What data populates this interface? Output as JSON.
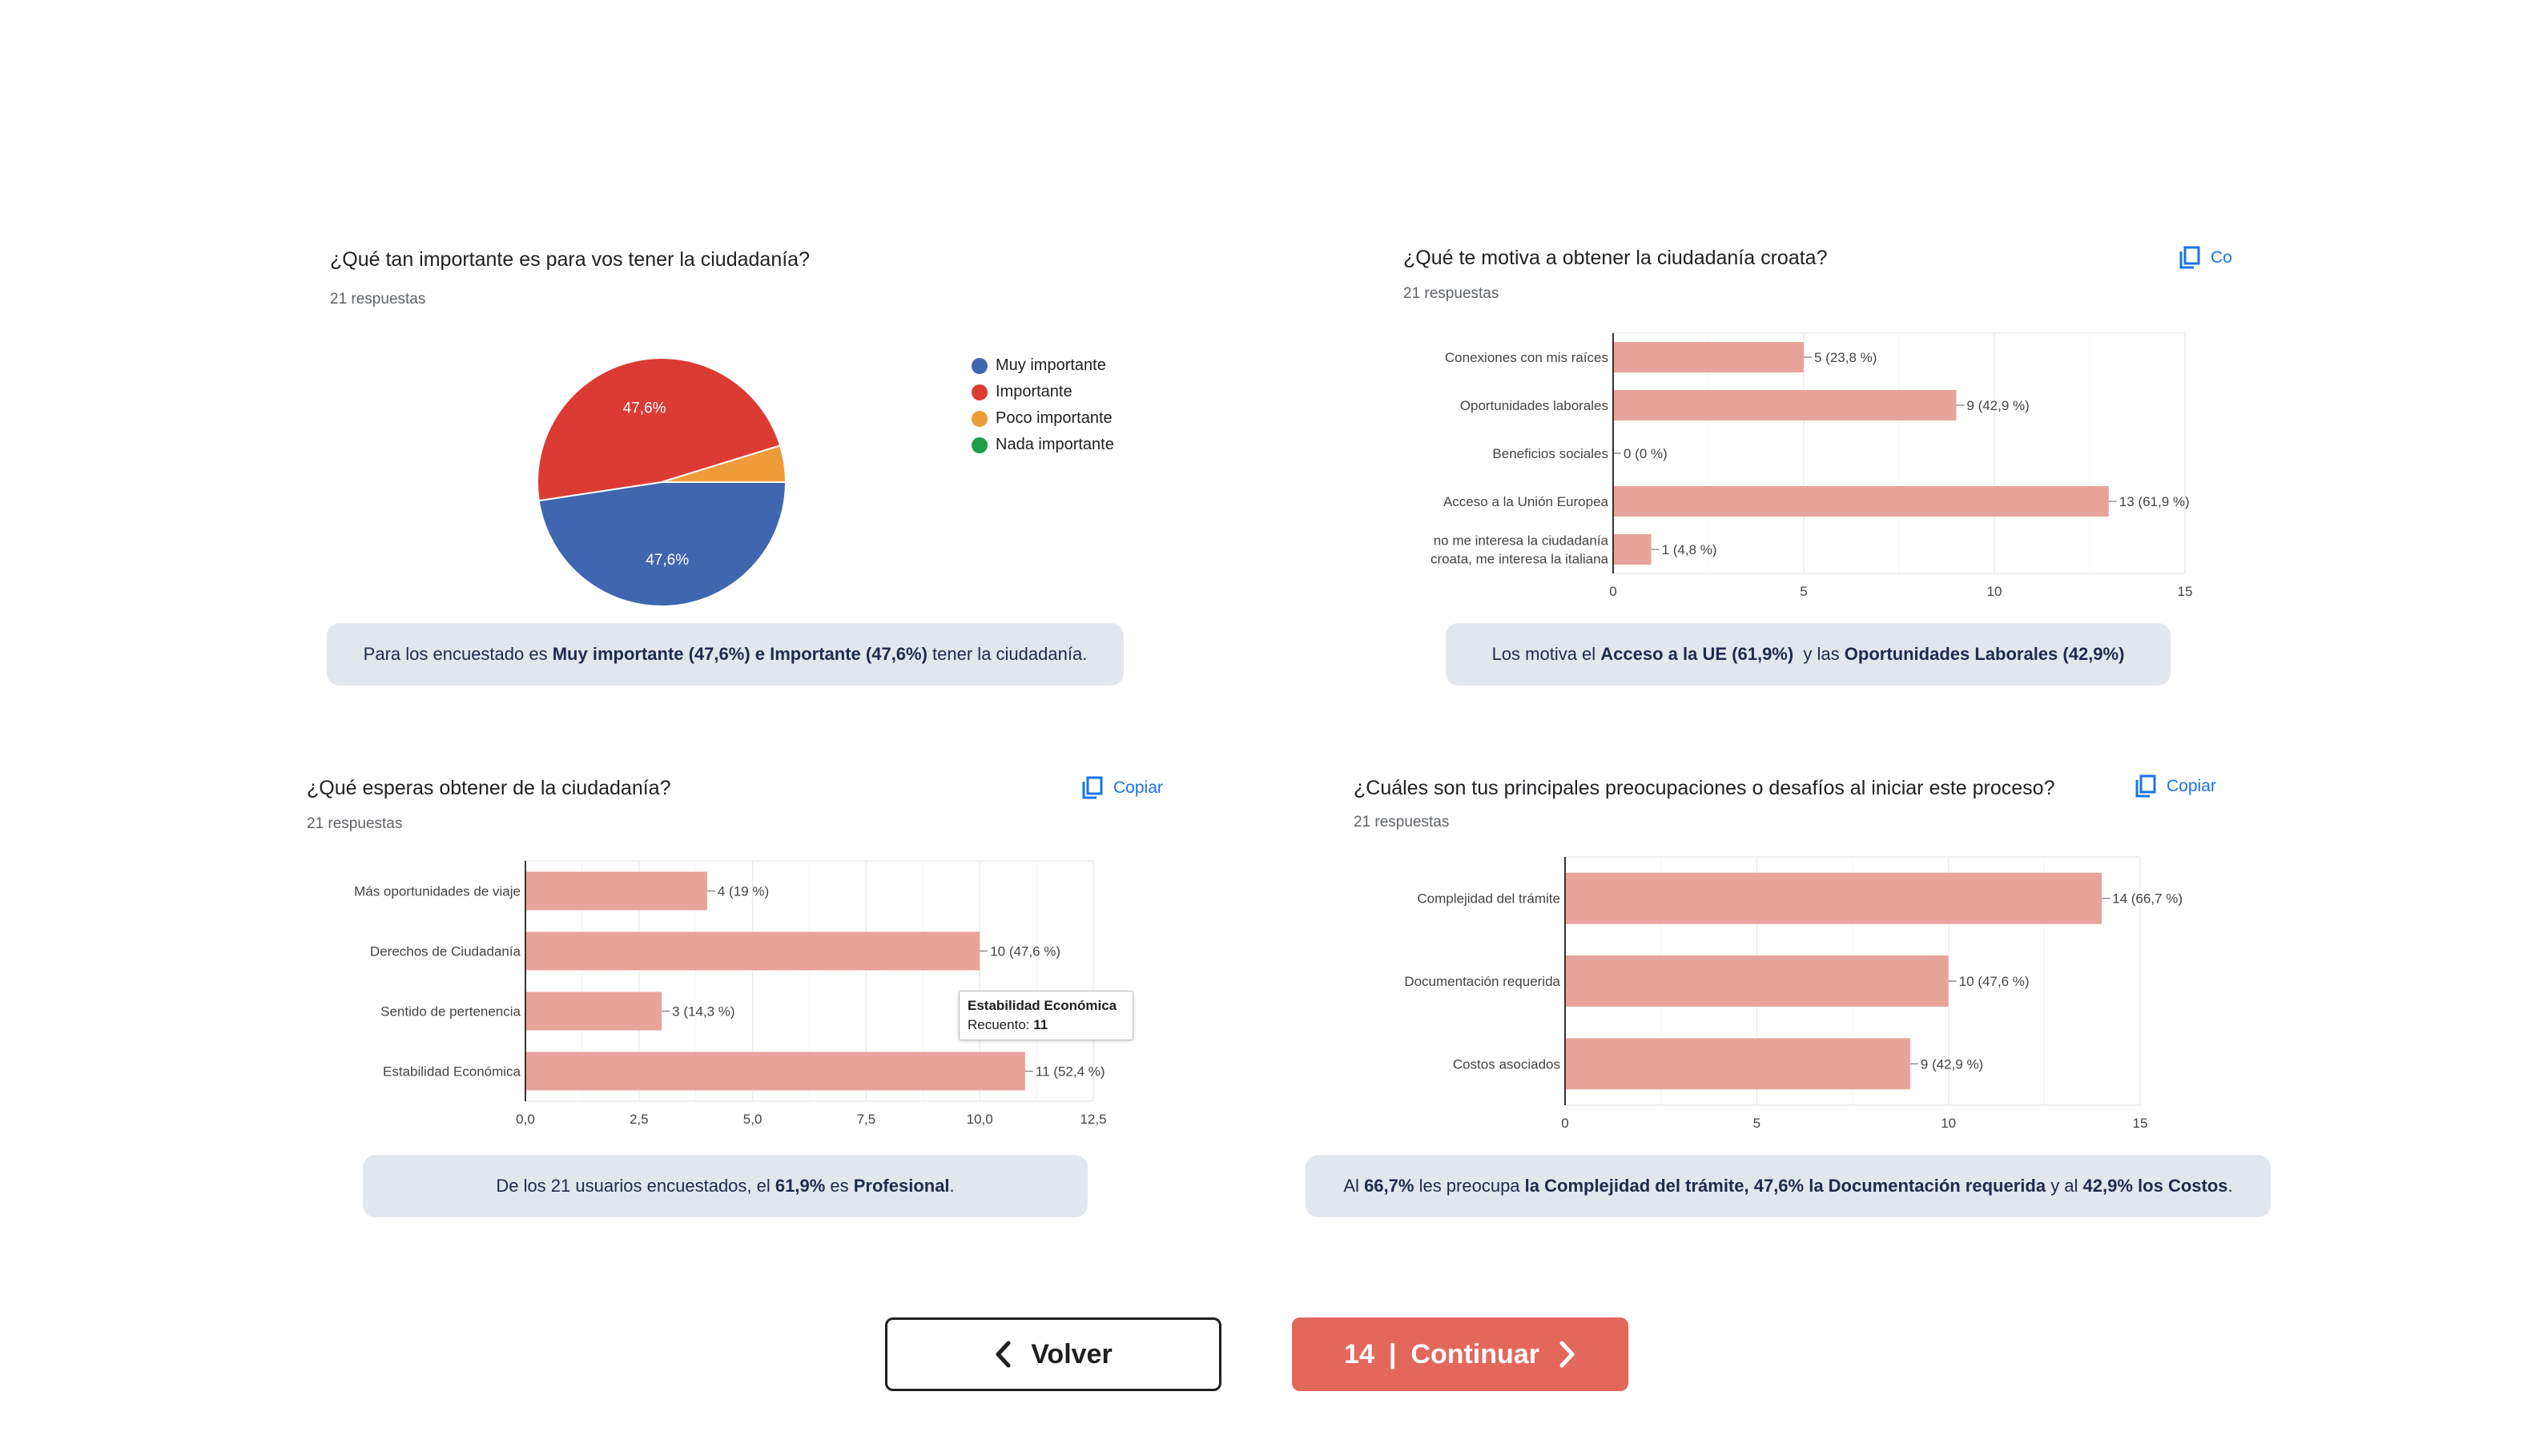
{
  "charts": {
    "c1": {
      "title": "¿Qué tan importante es para vos tener la ciudadanía?",
      "responses": "21 respuestas",
      "caption": {
        "p1": "Para los encuestado es ",
        "b1": "Muy importante (47,6%) e Importante (47,6%)",
        "p2": " tener la ciudadanía."
      }
    },
    "c2": {
      "title": "¿Qué te motiva a obtener la ciudadanía croata?",
      "responses": "21 respuestas",
      "copy_label": "Co",
      "caption": {
        "p1": "Los motiva el ",
        "b1": "Acceso a la UE (61,9%) ",
        "p2": " y las ",
        "b2": "Oportunidades Laborales (42,9%)"
      }
    },
    "c3": {
      "title": "¿Qué esperas obtener de la ciudadanía?",
      "responses": "21 respuestas",
      "copy_label": "Copiar",
      "tooltip": {
        "title": "Estabilidad Económica",
        "label": "Recuento: ",
        "value": "11"
      },
      "caption": {
        "p1": "De los 21 usuarios encuestados, el ",
        "b1": "61,9%",
        "p2": " es ",
        "b2": "Profesional",
        "p3": "."
      }
    },
    "c4": {
      "title": "¿Cuáles son tus principales preocupaciones o desafíos al iniciar este proceso?",
      "responses": "21 respuestas",
      "copy_label": "Copiar",
      "caption": {
        "p1": "Al ",
        "b1": "66,7%",
        "p2": " les preocupa ",
        "b2": "la Complejidad del trámite, 47,6% la Documentación requerida",
        "p3": " y al ",
        "b3": "42,9% los Costos",
        "p4": "."
      }
    }
  },
  "buttons": {
    "back_label": "Volver",
    "next_page": "14",
    "next_separator": "|",
    "next_label": "Continuar"
  },
  "colors": {
    "bar": "#e8a39a",
    "pie_muy": "#4166b0",
    "pie_importante": "#db3b33",
    "pie_poco": "#ee9b3a",
    "pie_nada": "#1f9e4a",
    "caption_bg": "#e2e6ed",
    "accent": "#e4675c"
  },
  "chart_data": [
    {
      "type": "pie",
      "title": "¿Qué tan importante es para vos tener la ciudadanía?",
      "categories": [
        "Muy importante",
        "Importante",
        "Poco importante",
        "Nada importante"
      ],
      "values": [
        10,
        10,
        1,
        0
      ],
      "labels": [
        "47,6%",
        "47,6%",
        "",
        ""
      ],
      "legend": "right"
    },
    {
      "type": "bar",
      "orientation": "horizontal",
      "title": "¿Qué te motiva a obtener la ciudadanía croata?",
      "categories": [
        "Conexiones con mis raíces",
        "Oportunidades laborales",
        "Beneficios sociales",
        "Acceso a la Unión Europea",
        "no me interesa la ciudadanía croata, me interesa la italiana"
      ],
      "values": [
        5,
        9,
        0,
        13,
        1
      ],
      "labels": [
        "5 (23,8 %)",
        "9 (42,9 %)",
        "0 (0 %)",
        "13 (61,9 %)",
        "1 (4,8 %)"
      ],
      "xlim": [
        0,
        15
      ],
      "xticks": [
        "0",
        "5",
        "10",
        "15"
      ]
    },
    {
      "type": "bar",
      "orientation": "horizontal",
      "title": "¿Qué esperas obtener de la ciudadanía?",
      "categories": [
        "Más oportunidades de viaje",
        "Derechos de Ciudadanía",
        "Sentido de pertenencia",
        "Estabilidad Económica"
      ],
      "values": [
        4,
        10,
        3,
        11
      ],
      "labels": [
        "4 (19 %)",
        "10 (47,6 %)",
        "3 (14,3 %)",
        "11 (52,4 %)"
      ],
      "xlim": [
        0,
        12.5
      ],
      "xticks": [
        "0,0",
        "2,5",
        "5,0",
        "7,5",
        "10,0",
        "12,5"
      ]
    },
    {
      "type": "bar",
      "orientation": "horizontal",
      "title": "¿Cuáles son tus principales preocupaciones o desafíos al iniciar este proceso?",
      "categories": [
        "Complejidad del trámite",
        "Documentación requerida",
        "Costos asociados"
      ],
      "values": [
        14,
        10,
        9
      ],
      "labels": [
        "14 (66,7 %)",
        "10 (47,6 %)",
        "9 (42,9 %)"
      ],
      "xlim": [
        0,
        15
      ],
      "xticks": [
        "0",
        "5",
        "10",
        "15"
      ]
    }
  ]
}
